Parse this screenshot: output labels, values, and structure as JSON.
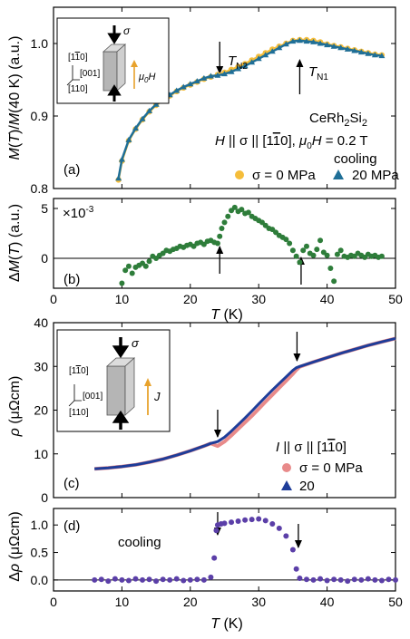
{
  "chart_data": [
    {
      "type": "scatter",
      "panel": "(a)",
      "xlabel": "",
      "ylabel": "M(T)/M(40 K) (a.u.)",
      "xlim": [
        0,
        50
      ],
      "ylim": [
        0.8,
        1.05
      ],
      "yticks": [
        0.8,
        0.9,
        1.0
      ],
      "ytick_labels": [
        "0.8",
        "0.9",
        "1.0"
      ],
      "xticks": [
        0,
        10,
        20,
        30,
        40,
        50
      ],
      "grid": false,
      "legend_position": "bottom-right",
      "annotations": {
        "compound": "CeRh2Si2",
        "field_line": "H || σ || [1-10], μ0H = 0.2 T",
        "mode": "cooling",
        "TN2": "T_N2",
        "TN1": "T_N1",
        "TN2_x": 24.3,
        "TN1_x": 36
      },
      "inset": {
        "label_top": "[1-10]",
        "label_mid": "[001]",
        "label_bot": "[110]",
        "sigma": "σ",
        "field": "μ0H"
      },
      "series": [
        {
          "name": "σ = 0 MPa",
          "color": "#f5bd3a",
          "marker": "circle",
          "x": [
            9.5,
            10,
            11,
            12,
            13,
            14,
            15,
            16,
            17,
            18,
            19,
            20,
            21,
            22,
            23,
            24,
            25,
            26,
            27,
            28,
            29,
            30,
            31,
            32,
            33,
            34,
            35,
            36,
            37,
            38,
            39,
            40,
            41,
            42,
            43,
            44,
            45,
            46,
            47,
            48
          ],
          "y": [
            0.812,
            0.838,
            0.866,
            0.882,
            0.895,
            0.906,
            0.915,
            0.922,
            0.928,
            0.934,
            0.939,
            0.943,
            0.947,
            0.951,
            0.954,
            0.957,
            0.96,
            0.964,
            0.968,
            0.972,
            0.977,
            0.982,
            0.987,
            0.992,
            0.996,
            1.0,
            1.004,
            1.005,
            1.005,
            1.004,
            1.002,
            0.999,
            0.997,
            0.995,
            0.993,
            0.991,
            0.989,
            0.987,
            0.985,
            0.984
          ]
        },
        {
          "name": "20 MPa",
          "color": "#1f6f97",
          "marker": "triangle",
          "x": [
            9.5,
            10,
            11,
            12,
            13,
            14,
            15,
            16,
            17,
            18,
            19,
            20,
            21,
            22,
            23,
            24,
            25,
            26,
            27,
            28,
            29,
            30,
            31,
            32,
            33,
            34,
            35,
            36,
            37,
            38,
            39,
            40,
            41,
            42,
            43,
            44,
            45,
            46,
            47,
            48
          ],
          "y": [
            0.814,
            0.84,
            0.867,
            0.883,
            0.896,
            0.907,
            0.916,
            0.923,
            0.929,
            0.935,
            0.94,
            0.944,
            0.948,
            0.952,
            0.955,
            0.956,
            0.958,
            0.961,
            0.965,
            0.969,
            0.974,
            0.979,
            0.984,
            0.989,
            0.994,
            0.999,
            1.003,
            1.004,
            1.003,
            1.002,
            1.0,
            0.998,
            0.996,
            0.994,
            0.992,
            0.99,
            0.988,
            0.986,
            0.984,
            0.983
          ]
        }
      ]
    },
    {
      "type": "scatter",
      "panel": "(b)",
      "xlabel": "T (K)",
      "ylabel": "ΔM(T) (a.u.)",
      "multiplier": "×10⁻³",
      "xlim": [
        0,
        50
      ],
      "ylim": [
        -3,
        6
      ],
      "yticks": [
        0,
        5
      ],
      "ytick_labels": [
        "0",
        "5"
      ],
      "xticks": [
        0,
        10,
        20,
        30,
        40,
        50
      ],
      "xtick_labels": [
        "0",
        "10",
        "20",
        "30",
        "40",
        "50"
      ],
      "zero_line": true,
      "arrows_x": [
        24.3,
        36.2
      ],
      "series": [
        {
          "name": "",
          "color": "#2e7d3a",
          "marker": "circle",
          "x": [
            10,
            10.5,
            11,
            11.5,
            12,
            12.5,
            13,
            13.5,
            14,
            14.5,
            15,
            15.5,
            16,
            16.5,
            17,
            17.5,
            18,
            18.5,
            19,
            19.5,
            20,
            20.5,
            21,
            21.5,
            22,
            22.5,
            23,
            23.5,
            24,
            24.3,
            24.6,
            25,
            25.5,
            26,
            26.5,
            27,
            27.5,
            28,
            28.5,
            29,
            29.5,
            30,
            30.5,
            31,
            31.5,
            32,
            32.5,
            33,
            33.5,
            34,
            34.5,
            35,
            35.5,
            36,
            36.5,
            37,
            37.5,
            38,
            38.5,
            39,
            39.5,
            40,
            40.5,
            41,
            41.5,
            42,
            42.5,
            43,
            43.5,
            44,
            44.5,
            45,
            45.5,
            46,
            46.5,
            47,
            47.5,
            48
          ],
          "y": [
            -2.5,
            -1.2,
            -0.8,
            -1.5,
            -0.9,
            -0.7,
            -0.5,
            -0.8,
            -0.3,
            0.2,
            0.0,
            0.3,
            0.5,
            0.8,
            0.7,
            0.9,
            1.0,
            1.2,
            1.1,
            1.3,
            1.4,
            1.2,
            1.5,
            1.6,
            1.4,
            1.7,
            1.8,
            1.6,
            1.5,
            2.2,
            3.0,
            3.6,
            4.2,
            4.8,
            5.1,
            4.7,
            4.9,
            4.5,
            4.6,
            4.2,
            4.0,
            3.8,
            3.6,
            3.3,
            3.0,
            2.9,
            2.6,
            2.3,
            2.1,
            1.9,
            1.5,
            0.8,
            0.2,
            -0.4,
            0.8,
            1.2,
            0.5,
            0.3,
            0.9,
            1.8,
            0.6,
            0.3,
            -1.0,
            -2.3,
            0.4,
            0.8,
            0.2,
            0.1,
            0.3,
            0.2,
            0.5,
            0.3,
            0.1,
            0.4,
            0.2,
            0.3,
            0.1,
            0.2
          ]
        }
      ]
    },
    {
      "type": "line",
      "panel": "(c)",
      "xlabel": "",
      "ylabel": "ρ (μΩcm)",
      "xlim": [
        0,
        50
      ],
      "ylim": [
        0,
        40
      ],
      "yticks": [
        0,
        10,
        20,
        30,
        40
      ],
      "ytick_labels": [
        "0",
        "10",
        "20",
        "30",
        "40"
      ],
      "xticks": [
        0,
        10,
        20,
        30,
        40,
        50
      ],
      "legend_position": "bottom-right",
      "legend_title": "I || σ || [1-10]",
      "arrows_x": [
        24,
        35.6
      ],
      "inset": {
        "label_top": "[1-10]",
        "label_mid": "[001]",
        "label_bot": "[110]",
        "sigma": "σ",
        "current": "J"
      },
      "series": [
        {
          "name": "σ = 0 MPa",
          "color": "#e88a8a",
          "marker": "circle",
          "x": [
            6,
            8,
            10,
            12,
            14,
            16,
            18,
            20,
            22,
            23,
            24,
            25,
            26,
            27,
            28,
            29,
            30,
            31,
            32,
            33,
            34,
            35,
            35.5,
            36,
            38,
            40,
            42,
            44,
            46,
            48,
            50
          ],
          "y": [
            6.6,
            6.8,
            7.1,
            7.5,
            8.1,
            8.8,
            9.7,
            10.7,
            11.8,
            12.4,
            11.8,
            12.8,
            14.2,
            15.7,
            17.2,
            18.7,
            20.3,
            21.9,
            23.5,
            25.1,
            26.7,
            28.3,
            29.2,
            29.9,
            31.0,
            32.0,
            33.0,
            33.9,
            34.8,
            35.6,
            36.4
          ]
        },
        {
          "name": "20",
          "color": "#1e3d99",
          "marker": "triangle",
          "x": [
            6,
            8,
            10,
            12,
            14,
            16,
            18,
            20,
            22,
            23,
            24,
            25,
            26,
            27,
            28,
            29,
            30,
            31,
            32,
            33,
            34,
            35,
            35.5,
            36,
            38,
            40,
            42,
            44,
            46,
            48,
            50
          ],
          "y": [
            6.6,
            6.8,
            7.1,
            7.5,
            8.1,
            8.8,
            9.7,
            10.7,
            11.8,
            12.4,
            12.8,
            13.8,
            15.2,
            16.7,
            18.2,
            19.8,
            21.4,
            23.0,
            24.6,
            26.1,
            27.6,
            29.1,
            29.7,
            30.0,
            31.0,
            32.0,
            33.0,
            33.9,
            34.8,
            35.6,
            36.4
          ]
        }
      ]
    },
    {
      "type": "scatter",
      "panel": "(d)",
      "xlabel": "T (K)",
      "ylabel": "Δρ (μΩcm)",
      "annotation": "cooling",
      "xlim": [
        0,
        50
      ],
      "ylim": [
        -0.2,
        1.3
      ],
      "yticks": [
        0.0,
        0.5,
        1.0
      ],
      "ytick_labels": [
        "0.0",
        "0.5",
        "1.0"
      ],
      "xticks": [
        0,
        10,
        20,
        30,
        40,
        50
      ],
      "xtick_labels": [
        "0",
        "10",
        "20",
        "30",
        "40",
        "50"
      ],
      "zero_line": true,
      "arrows_x": [
        24,
        35.8
      ],
      "series": [
        {
          "name": "",
          "color": "#5b3fa8",
          "marker": "circle",
          "x": [
            6,
            7,
            8,
            9,
            10,
            11,
            12,
            13,
            14,
            15,
            16,
            17,
            18,
            19,
            20,
            21,
            22,
            23,
            23.5,
            23.8,
            24,
            24.5,
            25,
            26,
            27,
            28,
            29,
            30,
            31,
            32,
            33,
            34,
            35,
            35.5,
            36,
            37,
            38,
            39,
            40,
            41,
            42,
            43,
            44,
            45,
            46,
            47,
            48,
            49,
            50
          ],
          "y": [
            0.0,
            0.01,
            -0.02,
            0.02,
            0.0,
            -0.01,
            0.02,
            0.0,
            0.01,
            -0.02,
            0.01,
            0.0,
            0.02,
            -0.01,
            0.0,
            0.01,
            0.0,
            0.05,
            0.4,
            0.9,
            1.0,
            1.02,
            1.03,
            1.05,
            1.07,
            1.09,
            1.1,
            1.11,
            1.08,
            1.02,
            0.94,
            0.8,
            0.55,
            0.2,
            0.03,
            0.01,
            0.0,
            0.02,
            -0.01,
            0.01,
            0.0,
            -0.02,
            0.01,
            0.0,
            0.02,
            0.0,
            -0.01,
            0.01,
            0.0
          ]
        }
      ]
    }
  ]
}
